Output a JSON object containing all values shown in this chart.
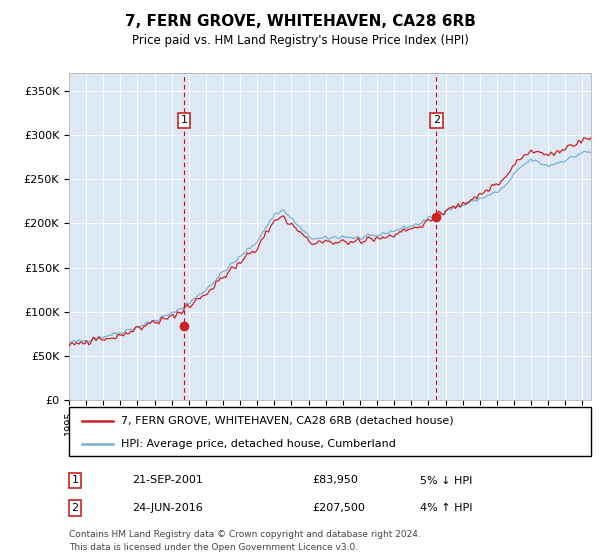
{
  "title": "7, FERN GROVE, WHITEHAVEN, CA28 6RB",
  "subtitle": "Price paid vs. HM Land Registry's House Price Index (HPI)",
  "ylabel_ticks": [
    "£0",
    "£50K",
    "£100K",
    "£150K",
    "£200K",
    "£250K",
    "£300K",
    "£350K"
  ],
  "ytick_values": [
    0,
    50000,
    100000,
    150000,
    200000,
    250000,
    300000,
    350000
  ],
  "ylim": [
    0,
    370000
  ],
  "xlim_start": 1995.0,
  "xlim_end": 2025.5,
  "background_color": "#dce9f5",
  "hpi_color": "#7ab0d4",
  "price_color": "#cc2222",
  "transaction1_year": 2001.72,
  "transaction1_price": 83950,
  "transaction2_year": 2016.47,
  "transaction2_price": 207500,
  "legend_line1": "7, FERN GROVE, WHITEHAVEN, CA28 6RB (detached house)",
  "legend_line2": "HPI: Average price, detached house, Cumberland",
  "ann1_label": "1",
  "ann1_date": "21-SEP-2001",
  "ann1_price": "£83,950",
  "ann1_hpi": "5% ↓ HPI",
  "ann2_label": "2",
  "ann2_date": "24-JUN-2016",
  "ann2_price": "£207,500",
  "ann2_hpi": "4% ↑ HPI",
  "footer_line1": "Contains HM Land Registry data © Crown copyright and database right 2024.",
  "footer_line2": "This data is licensed under the Open Government Licence v3.0."
}
